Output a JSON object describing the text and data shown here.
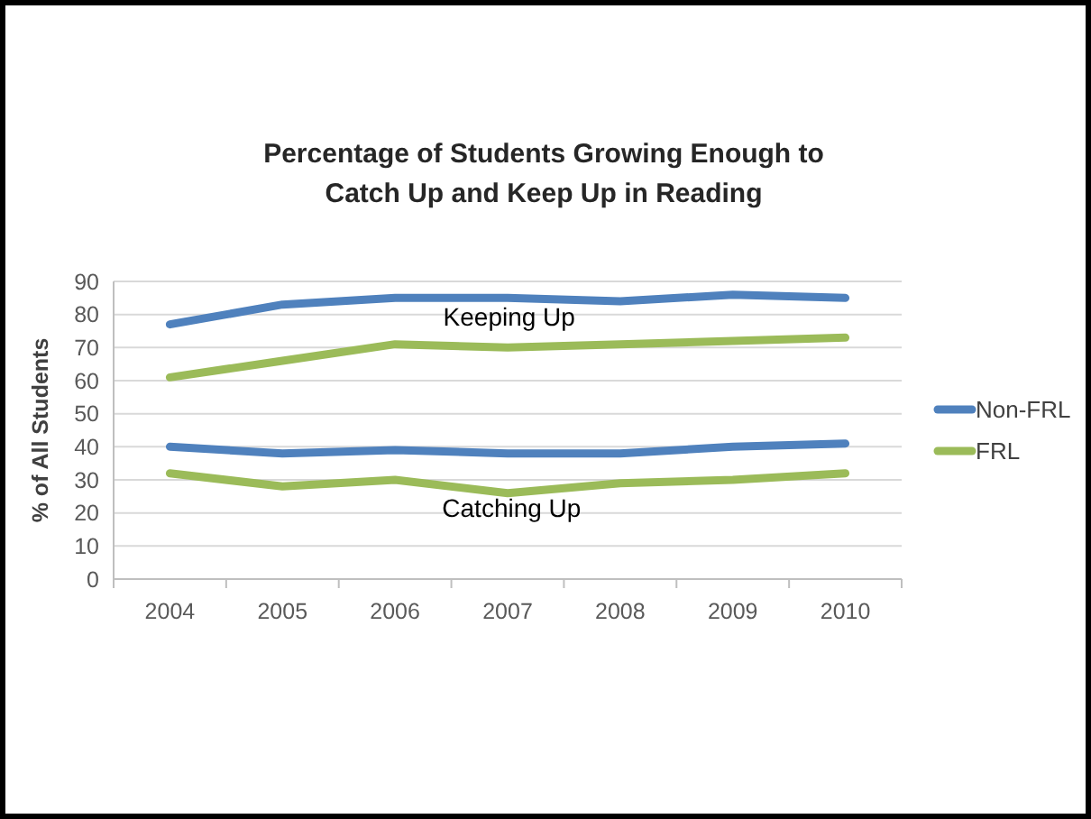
{
  "chart_data": {
    "type": "line",
    "title": "Percentage of Students Growing Enough to Catch Up and Keep Up in Reading",
    "ylabel": "% of All Students",
    "categories": [
      "2004",
      "2005",
      "2006",
      "2007",
      "2008",
      "2009",
      "2010"
    ],
    "series": [
      {
        "name": "Non-FRL",
        "color": "#4f81bd",
        "values": [
          77,
          83,
          85,
          85,
          84,
          86,
          85
        ]
      },
      {
        "name": "FRL",
        "color": "#9bbb59",
        "values": [
          61,
          66,
          71,
          70,
          71,
          72,
          73
        ]
      },
      {
        "color": "#4f81bd",
        "values": [
          40,
          38,
          39,
          38,
          38,
          40,
          41
        ]
      },
      {
        "color": "#9bbb59",
        "values": [
          32,
          28,
          30,
          26,
          29,
          30,
          32
        ]
      }
    ],
    "ylim": [
      0,
      90
    ],
    "yticks": [
      0,
      10,
      20,
      30,
      40,
      50,
      60,
      70,
      80,
      90
    ],
    "grid": "y",
    "legend": "right",
    "annotations": [
      "Keeping Up",
      "Catching Up"
    ]
  }
}
